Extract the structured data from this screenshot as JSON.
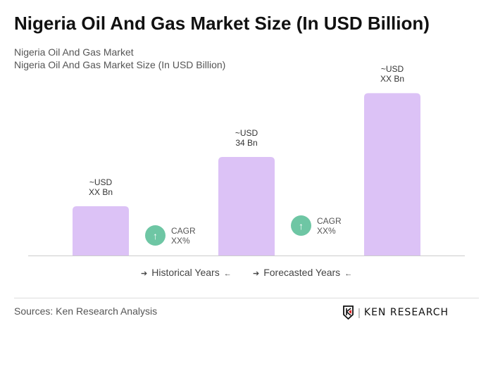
{
  "title": "Nigeria Oil And Gas Market Size (In USD Billion)",
  "subtitle1": "Nigeria Oil And Gas Market",
  "subtitle2": "Nigeria Oil And Gas Market Size (In USD Billion)",
  "chart_data": {
    "type": "bar",
    "categories": [
      "",
      "",
      ""
    ],
    "values": [
      17,
      34,
      56
    ],
    "data_labels": [
      [
        "~USD",
        "XX Bn"
      ],
      [
        "~USD",
        "34 Bn"
      ],
      [
        "~USD",
        "XX Bn"
      ]
    ],
    "bar_color": "#dcc2f6",
    "grid": false
  },
  "cagr": [
    {
      "label": "CAGR",
      "value": "XX%"
    },
    {
      "label": "CAGR",
      "value": "XX%"
    }
  ],
  "cagr_color": "#6ec6a4",
  "legend": {
    "historical": "Historical Years",
    "forecasted": "Forecasted Years"
  },
  "sources": "Sources: Ken Research Analysis",
  "logo": "KEN RESEARCH"
}
